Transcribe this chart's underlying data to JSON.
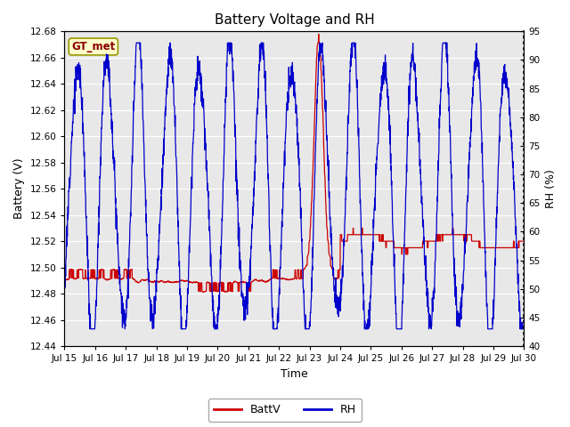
{
  "title": "Battery Voltage and RH",
  "xlabel": "Time",
  "ylabel_left": "Battery (V)",
  "ylabel_right": "RH (%)",
  "annotation": "GT_met",
  "ylim_left": [
    12.44,
    12.68
  ],
  "ylim_right": [
    40,
    95
  ],
  "yticks_left": [
    12.44,
    12.46,
    12.48,
    12.5,
    12.52,
    12.54,
    12.56,
    12.58,
    12.6,
    12.62,
    12.64,
    12.66,
    12.68
  ],
  "yticks_right": [
    40,
    45,
    50,
    55,
    60,
    65,
    70,
    75,
    80,
    85,
    90,
    95
  ],
  "xtick_labels": [
    "Jul 15",
    "Jul 16",
    "Jul 17",
    "Jul 18",
    "Jul 19",
    "Jul 20",
    "Jul 21",
    "Jul 22",
    "Jul 23",
    "Jul 24",
    "Jul 25",
    "Jul 26",
    "Jul 27",
    "Jul 28",
    "Jul 29",
    "Jul 30"
  ],
  "color_batt": "#cc0000",
  "color_rh": "#0000cc",
  "plot_bg": "#e8e8e8",
  "legend_labels": [
    "BattV",
    "RH"
  ],
  "title_fontsize": 11,
  "axis_label_fontsize": 9,
  "tick_fontsize": 7.5
}
